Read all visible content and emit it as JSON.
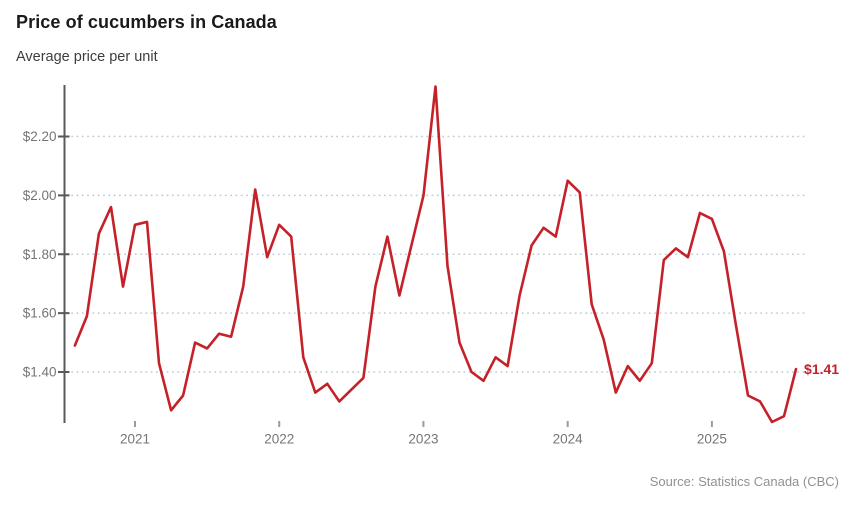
{
  "header": {
    "title": "Price of cucumbers in Canada",
    "subtitle": "Average price per unit"
  },
  "footer": {
    "source": "Source: Statistics Canada (CBC)"
  },
  "chart_data": {
    "type": "line",
    "title": "Price of cucumbers in Canada",
    "subtitle": "Average price per unit",
    "series_name": "Average price per unit",
    "x": [
      "2020-08",
      "2020-09",
      "2020-10",
      "2020-11",
      "2020-12",
      "2021-01",
      "2021-02",
      "2021-03",
      "2021-04",
      "2021-05",
      "2021-06",
      "2021-07",
      "2021-08",
      "2021-09",
      "2021-10",
      "2021-11",
      "2021-12",
      "2022-01",
      "2022-02",
      "2022-03",
      "2022-04",
      "2022-05",
      "2022-06",
      "2022-07",
      "2022-08",
      "2022-09",
      "2022-10",
      "2022-11",
      "2022-12",
      "2023-01",
      "2023-02",
      "2023-03",
      "2023-04",
      "2023-05",
      "2023-06",
      "2023-07",
      "2023-08",
      "2023-09",
      "2023-10",
      "2023-11",
      "2023-12",
      "2024-01",
      "2024-02",
      "2024-03",
      "2024-04",
      "2024-05",
      "2024-06",
      "2024-07",
      "2024-08",
      "2024-09",
      "2024-10",
      "2024-11",
      "2024-12",
      "2025-01",
      "2025-02",
      "2025-03",
      "2025-04",
      "2025-05",
      "2025-06",
      "2025-07",
      "2025-08"
    ],
    "values": [
      1.49,
      1.59,
      1.87,
      1.96,
      1.69,
      1.9,
      1.91,
      1.43,
      1.27,
      1.32,
      1.5,
      1.48,
      1.53,
      1.52,
      1.69,
      2.02,
      1.79,
      1.9,
      1.86,
      1.45,
      1.33,
      1.36,
      1.3,
      1.34,
      1.38,
      1.69,
      1.86,
      1.66,
      1.83,
      2.0,
      2.37,
      1.76,
      1.5,
      1.4,
      1.37,
      1.45,
      1.42,
      1.66,
      1.83,
      1.89,
      1.86,
      2.05,
      2.01,
      1.63,
      1.51,
      1.33,
      1.42,
      1.37,
      1.43,
      1.78,
      1.82,
      1.79,
      1.94,
      1.92,
      1.81,
      1.56,
      1.32,
      1.3,
      1.23,
      1.25,
      1.41
    ],
    "x_ticks": [
      "2021",
      "2022",
      "2023",
      "2024",
      "2025"
    ],
    "y_ticks": [
      "$1.40",
      "$1.60",
      "$1.80",
      "$2.00",
      "$2.20"
    ],
    "y_tick_values": [
      1.4,
      1.6,
      1.8,
      2.0,
      2.2
    ],
    "ylim": [
      1.23,
      2.38
    ],
    "end_label": "$1.41",
    "grid": "horizontal-dotted",
    "legend": "none",
    "colors": {
      "line": "#c42129",
      "end_label": "#c42129",
      "axis": "#58595b",
      "gridline": "#bccbd2",
      "tick_label": "#757575",
      "x_tick_mark": "#9b9b9b"
    }
  }
}
